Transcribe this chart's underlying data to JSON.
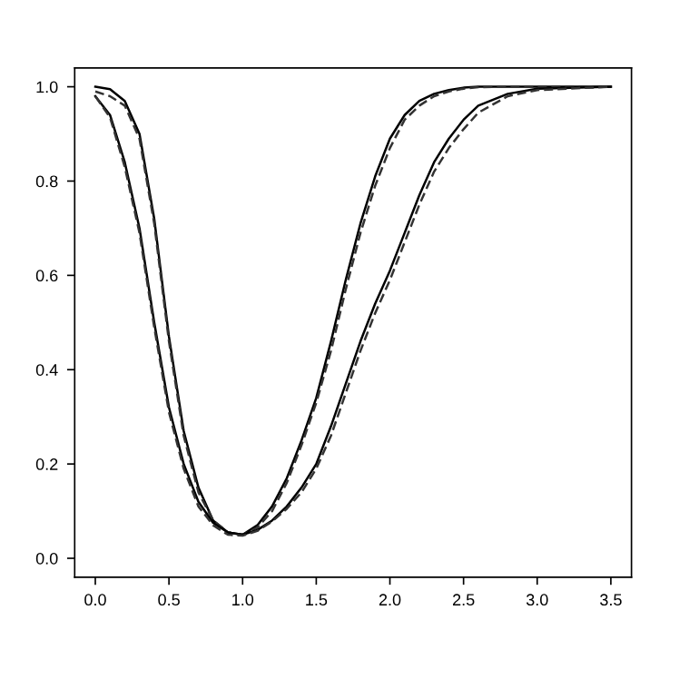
{
  "chart_data": {
    "type": "line",
    "xlim": [
      -0.14,
      3.64
    ],
    "ylim": [
      -0.04,
      1.04
    ],
    "xticks": [
      {
        "value": 0,
        "label": "0.0"
      },
      0.5,
      {
        "value": 1,
        "label": "1.0"
      },
      1.5,
      {
        "value": 2,
        "label": "2.0"
      },
      2.5,
      {
        "value": 3,
        "label": "3.0"
      },
      3.5
    ],
    "yticks": [
      {
        "value": 0,
        "label": "0.0"
      },
      0.2,
      0.4,
      0.6,
      0.8,
      {
        "value": 1,
        "label": "1.0"
      }
    ],
    "grid": false,
    "legend": false,
    "marker": "none",
    "x": [
      0,
      0.1,
      0.2,
      0.3,
      0.4,
      0.5,
      0.6,
      0.7,
      0.8,
      0.9,
      1.0,
      1.1,
      1.2,
      1.3,
      1.4,
      1.5,
      1.6,
      1.7,
      1.8,
      1.9,
      2.0,
      2.1,
      2.2,
      2.3,
      2.4,
      2.5,
      2.6,
      2.8,
      3.0,
      3.5
    ],
    "series": [
      {
        "color": "#000000",
        "line_style": "solid",
        "values": [
          1.0,
          0.995,
          0.97,
          0.9,
          0.72,
          0.47,
          0.27,
          0.15,
          0.08,
          0.055,
          0.05,
          0.07,
          0.11,
          0.17,
          0.25,
          0.34,
          0.46,
          0.59,
          0.71,
          0.81,
          0.89,
          0.94,
          0.97,
          0.985,
          0.993,
          0.998,
          1.0,
          1.0,
          1.0,
          1.0
        ]
      },
      {
        "color": "#333333",
        "line_style": "dashed",
        "values": [
          0.99,
          0.98,
          0.96,
          0.89,
          0.71,
          0.46,
          0.26,
          0.14,
          0.08,
          0.055,
          0.05,
          0.065,
          0.1,
          0.16,
          0.24,
          0.33,
          0.44,
          0.57,
          0.69,
          0.79,
          0.87,
          0.93,
          0.96,
          0.98,
          0.99,
          0.996,
          0.999,
          1.0,
          1.0,
          1.0
        ]
      },
      {
        "color": "#000000",
        "line_style": "solid",
        "values": [
          0.98,
          0.94,
          0.84,
          0.7,
          0.5,
          0.32,
          0.2,
          0.12,
          0.075,
          0.055,
          0.05,
          0.06,
          0.08,
          0.11,
          0.15,
          0.2,
          0.28,
          0.37,
          0.46,
          0.54,
          0.61,
          0.69,
          0.77,
          0.84,
          0.89,
          0.93,
          0.96,
          0.985,
          0.996,
          1.0
        ]
      },
      {
        "color": "#333333",
        "line_style": "dashed",
        "values": [
          0.98,
          0.935,
          0.83,
          0.69,
          0.49,
          0.31,
          0.19,
          0.11,
          0.07,
          0.05,
          0.048,
          0.058,
          0.078,
          0.105,
          0.14,
          0.19,
          0.26,
          0.35,
          0.44,
          0.52,
          0.59,
          0.67,
          0.75,
          0.82,
          0.87,
          0.91,
          0.945,
          0.98,
          0.993,
          1.0
        ]
      }
    ]
  }
}
